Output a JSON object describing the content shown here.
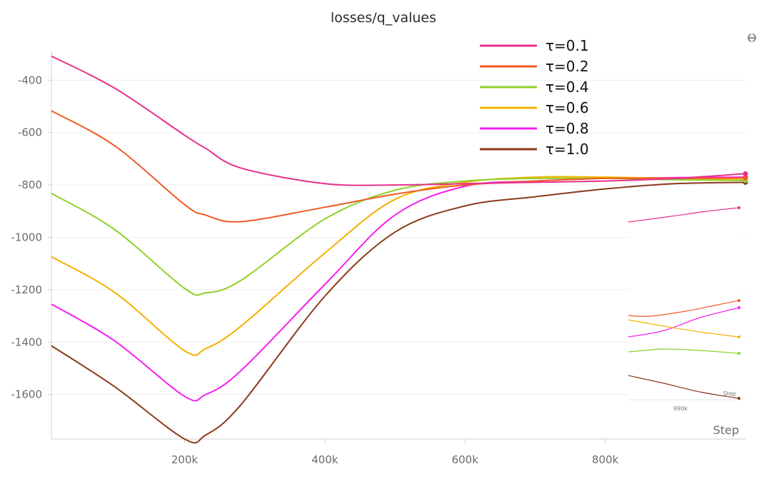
{
  "chart_data": {
    "type": "line",
    "title": "losses/q_values",
    "xlabel": "Step",
    "ylabel": "",
    "xlim": [
      10000,
      1000000
    ],
    "ylim": [
      -1770,
      -290
    ],
    "x_ticks": [
      200000,
      400000,
      600000,
      800000
    ],
    "x_tick_labels": [
      "200k",
      "400k",
      "600k",
      "800k"
    ],
    "y_ticks": [
      -400,
      -600,
      -800,
      -1000,
      -1200,
      -1400,
      -1600
    ],
    "y_tick_labels": [
      "-400",
      "-600",
      "-800",
      "-1000",
      "-1200",
      "-1400",
      "-1600"
    ],
    "grid": true,
    "legend_position": "top-right",
    "x": [
      10000,
      100000,
      200000,
      230000,
      280000,
      400000,
      500000,
      600000,
      700000,
      800000,
      900000,
      1000000
    ],
    "series": [
      {
        "name": "τ=0.1",
        "color": "#e8308c",
        "values": [
          -308,
          -430,
          -610,
          -660,
          -735,
          -795,
          -800,
          -795,
          -790,
          -785,
          -775,
          -757
        ]
      },
      {
        "name": "τ=0.2",
        "color": "#f05a24",
        "values": [
          -517,
          -650,
          -875,
          -915,
          -940,
          -885,
          -835,
          -800,
          -785,
          -775,
          -775,
          -773
        ]
      },
      {
        "name": "τ=0.4",
        "color": "#8fd22a",
        "values": [
          -832,
          -970,
          -1195,
          -1212,
          -1165,
          -930,
          -820,
          -785,
          -775,
          -775,
          -780,
          -783
        ]
      },
      {
        "name": "τ=0.6",
        "color": "#f5b000",
        "values": [
          -1074,
          -1210,
          -1433,
          -1425,
          -1340,
          -1060,
          -855,
          -790,
          -770,
          -770,
          -775,
          -780
        ]
      },
      {
        "name": "τ=0.8",
        "color": "#f51ef0",
        "values": [
          -1255,
          -1395,
          -1607,
          -1600,
          -1510,
          -1180,
          -915,
          -805,
          -785,
          -775,
          -772,
          -770
        ]
      },
      {
        "name": "τ=1.0",
        "color": "#8b3a1a",
        "values": [
          -1414,
          -1570,
          -1770,
          -1755,
          -1640,
          -1225,
          -980,
          -880,
          -845,
          -815,
          -795,
          -790
        ]
      }
    ],
    "inset": {
      "xlabel": "Step",
      "x_tick_label": "990k"
    }
  },
  "controls": {
    "scroll_icon": "up-down-arrows-icon"
  }
}
